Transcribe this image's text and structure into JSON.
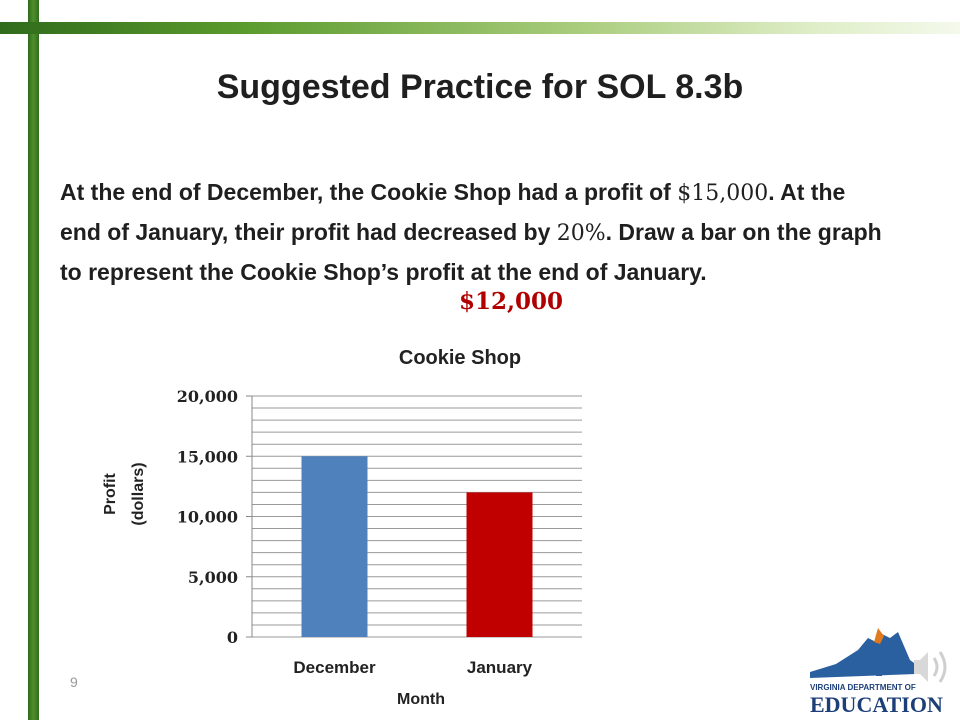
{
  "slide": {
    "title": "Suggested Practice for SOL 8.3b",
    "problem": {
      "part1": "At the end of December, the Cookie Shop had a profit of",
      "amount": "$15,000",
      "part2": ". At the end of January, their profit had decreased by",
      "percent": "20%",
      "part3": ". Draw a bar on the graph to represent the Cookie Shop’s profit at the end of January."
    },
    "answer": "$12,000",
    "page_number": "9",
    "logo_text": "VIRGINIA DEPARTMENT OF EDUCATION"
  },
  "colors": {
    "december_bar": "#4f81bd",
    "january_bar": "#c00000",
    "answer_text": "#b00000"
  },
  "chart_data": {
    "type": "bar",
    "title": "Cookie Shop",
    "categories": [
      "December",
      "January"
    ],
    "values": [
      15000,
      12000
    ],
    "ytick_labels": [
      "0",
      "5,000",
      "10,000",
      "15,000",
      "20,000"
    ],
    "ylim": [
      0,
      20000
    ],
    "ylabel": [
      "Profit",
      "(dollars)"
    ],
    "xlabel": "Month",
    "grid": true,
    "grid_step": 1000,
    "legend": "none"
  },
  "icons": {
    "speaker": "speaker-icon",
    "logo": "virginia-doe-logo"
  }
}
